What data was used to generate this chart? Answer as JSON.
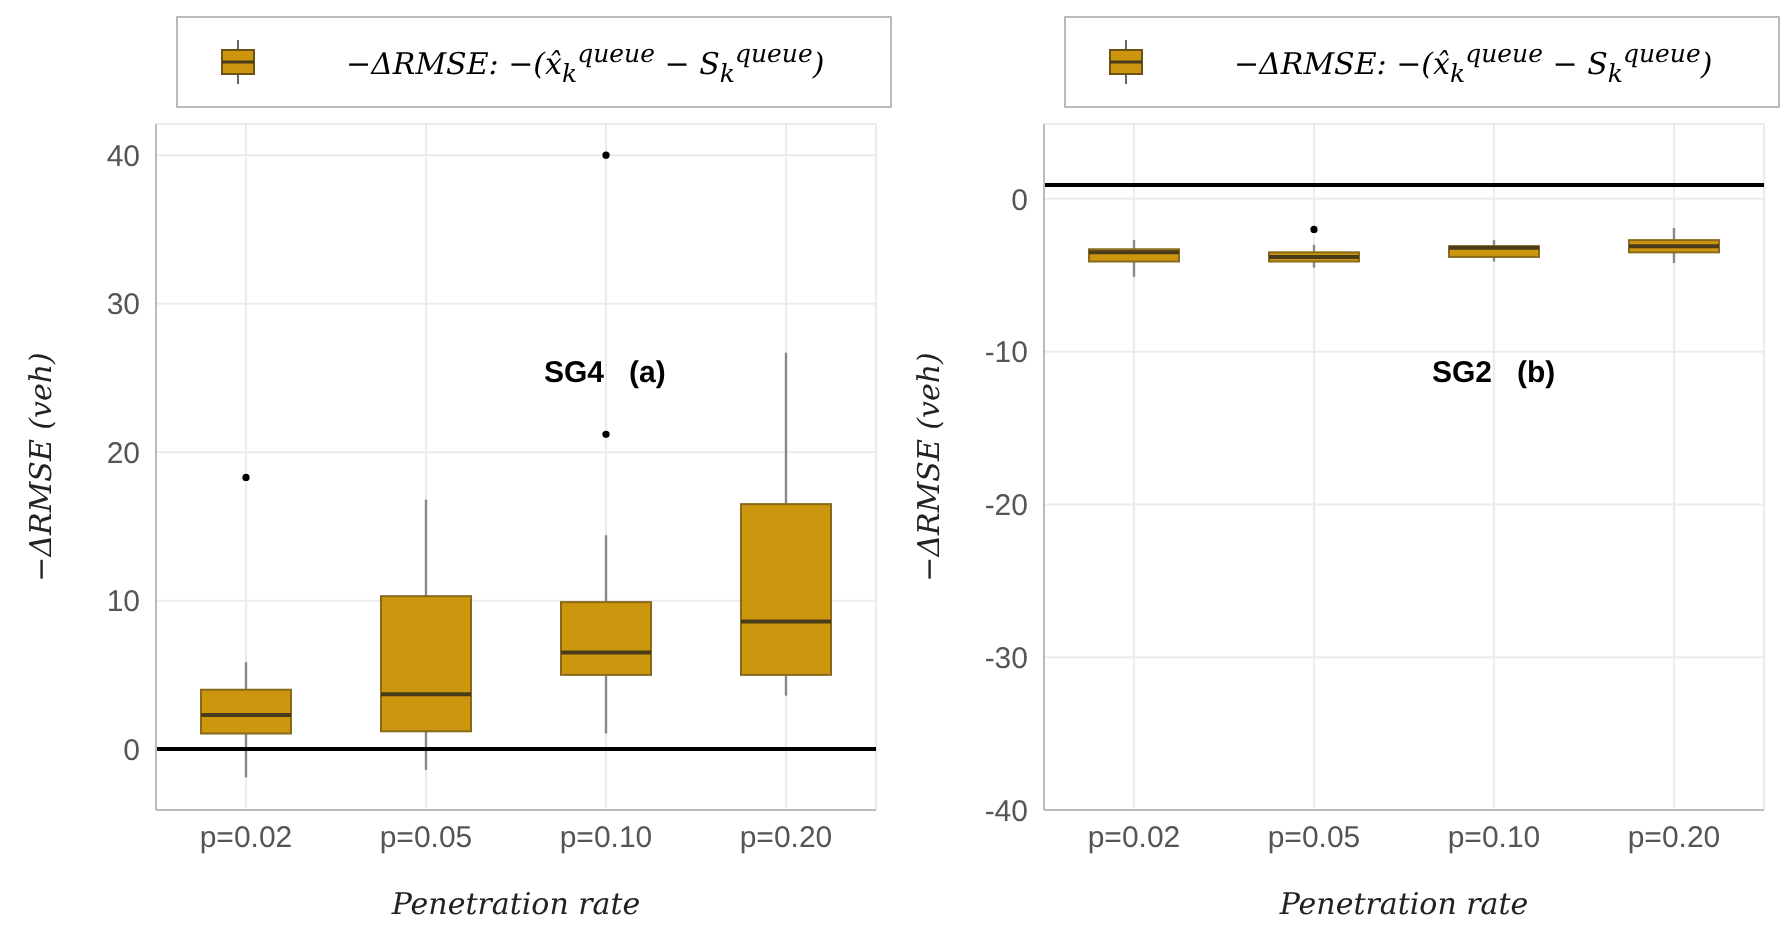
{
  "chart_data": [
    {
      "type": "box",
      "categories": [
        "p=0.02",
        "p=0.05",
        "p=0.10",
        "p=0.20"
      ],
      "xlabel": "Penetration rate",
      "ylabel": "−ΔRMSE (veh)",
      "annotations": [
        "SG4   (a)"
      ],
      "ylim": [
        -4.1,
        42.1
      ],
      "yticks": [
        0,
        10,
        20,
        30,
        40
      ],
      "grid": true,
      "legend": "top",
      "ref_lines": [
        {
          "axis": "y",
          "value": 0,
          "color": "#000000"
        }
      ],
      "series": [
        {
          "name": "−ΔRMSE:  −(x̂$_{k}$$^{queue}$ − S$_{k}$$^{queue}$)",
          "color": "#cc960f",
          "boxes": [
            {
              "low": -1.9,
              "q1": 1.05,
              "median": 2.3,
              "q3": 4.0,
              "high": 5.85,
              "outliers": [
                18.3
              ]
            },
            {
              "low": -1.4,
              "q1": 1.2,
              "median": 3.7,
              "q3": 10.3,
              "high": 16.8
            },
            {
              "low": 1.05,
              "q1": 5.0,
              "median": 6.5,
              "q3": 9.9,
              "high": 14.4,
              "outliers": [
                21.2,
                40.0
              ]
            },
            {
              "low": 3.6,
              "q1": 5.0,
              "median": 8.6,
              "q3": 16.5,
              "high": 26.7
            }
          ]
        }
      ]
    },
    {
      "type": "box",
      "categories": [
        "p=0.02",
        "p=0.05",
        "p=0.10",
        "p=0.20"
      ],
      "xlabel": "Penetration rate",
      "ylabel": "−ΔRMSE (veh)",
      "annotations": [
        "SG2   (b)"
      ],
      "ylim": [
        -40,
        4.9
      ],
      "yticks": [
        -40,
        -30,
        -20,
        -10,
        0
      ],
      "grid": true,
      "legend": "top",
      "ref_lines": [
        {
          "axis": "y",
          "value": 0.9,
          "color": "#000000"
        }
      ],
      "series": [
        {
          "name": "−ΔRMSE:  −(x̂$_{k}$$^{queue}$ − S$_{k}$$^{queue}$)",
          "color": "#cc960f",
          "boxes": [
            {
              "low": -5.1,
              "q1": -4.1,
              "median": -3.5,
              "q3": -3.3,
              "high": -2.7
            },
            {
              "low": -4.5,
              "q1": -4.1,
              "median": -3.8,
              "q3": -3.5,
              "high": -3.0,
              "outliers": [
                -2.0
              ]
            },
            {
              "low": -4.1,
              "q1": -3.8,
              "median": -3.2,
              "q3": -3.1,
              "high": -2.7
            },
            {
              "low": -4.2,
              "q1": -3.5,
              "median": -3.1,
              "q3": -2.7,
              "high": -1.9
            }
          ]
        }
      ]
    }
  ]
}
